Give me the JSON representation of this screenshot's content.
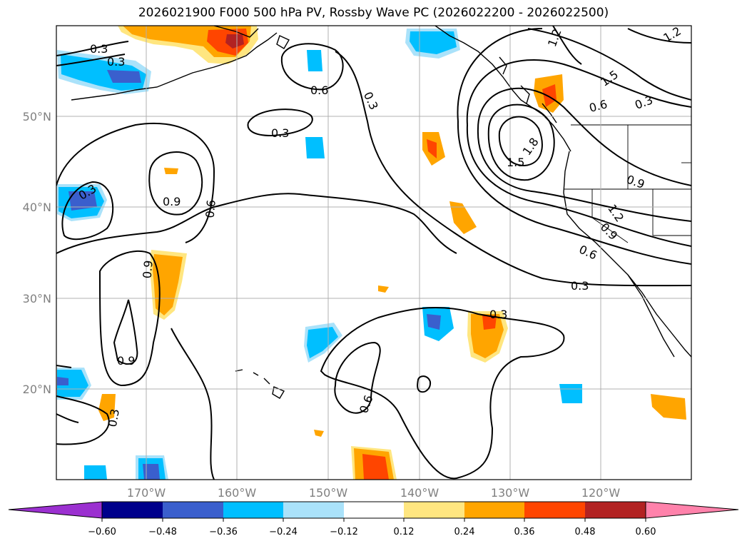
{
  "title": "2026021900 F000 500 hPa PV, Rossby Wave PC (2026022200 - 2026022500)",
  "map": {
    "lon_labels": [
      "170°W",
      "160°W",
      "150°W",
      "140°W",
      "130°W",
      "120°W"
    ],
    "lat_labels": [
      "50°N",
      "40°N",
      "30°N",
      "20°N"
    ],
    "contour_labels": [
      "0.3",
      "0.3",
      "0.6",
      "0.3",
      "1.2",
      "1.2",
      "1.5",
      "0.6",
      "0.3",
      "1.8",
      "1.5",
      "0.3",
      "0.9",
      "0.6",
      "0.9",
      "1.2",
      "0.9",
      "0.6",
      "0.3",
      "0.9",
      "0.9",
      "0.3",
      "0.3",
      "0.6",
      "0.3"
    ]
  },
  "colorbar": {
    "ticks": [
      "−0.60",
      "−0.48",
      "−0.36",
      "−0.24",
      "−0.12",
      "0.12",
      "0.24",
      "0.36",
      "0.48",
      "0.60"
    ],
    "colors": [
      "#9b30d0",
      "#00008b",
      "#3a5fcd",
      "#00bfff",
      "#aae2fa",
      "#ffffff",
      "#ffe680",
      "#ffa500",
      "#ff4500",
      "#b22222",
      "#ff82ab",
      "#ff82ab"
    ]
  }
}
